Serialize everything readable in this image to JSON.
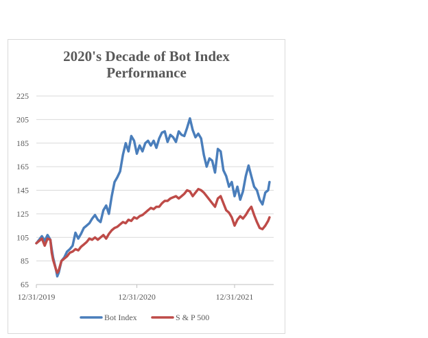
{
  "chart_data": {
    "type": "line",
    "title_lines": [
      "2020's Decade of Bot Index",
      "Performance"
    ],
    "xlabel": "",
    "ylabel": "",
    "ylim": [
      65,
      225
    ],
    "y_ticks": [
      "225",
      "205",
      "185",
      "165",
      "145",
      "125",
      "105",
      "85",
      "65"
    ],
    "x_ticks": [
      "12/31/2019",
      "12/31/2020",
      "12/31/2021"
    ],
    "grid": "horizontal",
    "legend_position": "bottom",
    "colors": {
      "bot_index": "#4a7ebb",
      "sp500": "#be4b48",
      "grid": "#d9d9d9",
      "axis": "#bfbfbf"
    },
    "series": [
      {
        "name": "Bot Index",
        "color": "#4a7ebb",
        "points": [
          [
            0,
            100
          ],
          [
            2,
            103
          ],
          [
            4,
            106
          ],
          [
            6,
            102
          ],
          [
            8,
            107
          ],
          [
            10,
            103
          ],
          [
            11,
            95
          ],
          [
            12,
            88
          ],
          [
            14,
            78
          ],
          [
            15,
            72
          ],
          [
            16,
            75
          ],
          [
            18,
            85
          ],
          [
            20,
            88
          ],
          [
            22,
            93
          ],
          [
            24,
            95
          ],
          [
            26,
            98
          ],
          [
            28,
            109
          ],
          [
            30,
            104
          ],
          [
            32,
            108
          ],
          [
            34,
            113
          ],
          [
            36,
            115
          ],
          [
            38,
            117
          ],
          [
            40,
            121
          ],
          [
            42,
            124
          ],
          [
            44,
            120
          ],
          [
            46,
            118
          ],
          [
            48,
            128
          ],
          [
            50,
            132
          ],
          [
            52,
            125
          ],
          [
            54,
            140
          ],
          [
            56,
            152
          ],
          [
            58,
            156
          ],
          [
            60,
            161
          ],
          [
            62,
            175
          ],
          [
            64,
            185
          ],
          [
            66,
            178
          ],
          [
            68,
            191
          ],
          [
            70,
            187
          ],
          [
            72,
            176
          ],
          [
            74,
            183
          ],
          [
            76,
            178
          ],
          [
            78,
            185
          ],
          [
            80,
            187
          ],
          [
            82,
            183
          ],
          [
            84,
            187
          ],
          [
            86,
            181
          ],
          [
            88,
            189
          ],
          [
            90,
            194
          ],
          [
            92,
            195
          ],
          [
            94,
            186
          ],
          [
            96,
            192
          ],
          [
            98,
            190
          ],
          [
            100,
            186
          ],
          [
            102,
            195
          ],
          [
            104,
            192
          ],
          [
            106,
            191
          ],
          [
            108,
            198
          ],
          [
            110,
            206
          ],
          [
            112,
            196
          ],
          [
            114,
            190
          ],
          [
            116,
            193
          ],
          [
            118,
            189
          ],
          [
            120,
            175
          ],
          [
            122,
            165
          ],
          [
            124,
            172
          ],
          [
            126,
            170
          ],
          [
            128,
            160
          ],
          [
            130,
            180
          ],
          [
            132,
            178
          ],
          [
            134,
            162
          ],
          [
            136,
            157
          ],
          [
            138,
            148
          ],
          [
            140,
            152
          ],
          [
            142,
            140
          ],
          [
            144,
            148
          ],
          [
            146,
            137
          ],
          [
            148,
            144
          ],
          [
            150,
            157
          ],
          [
            152,
            166
          ],
          [
            154,
            157
          ],
          [
            156,
            148
          ],
          [
            158,
            145
          ],
          [
            160,
            137
          ],
          [
            162,
            133
          ],
          [
            164,
            143
          ],
          [
            166,
            145
          ],
          [
            167,
            152
          ]
        ]
      },
      {
        "name": "S & P 500",
        "color": "#be4b48",
        "points": [
          [
            0,
            100
          ],
          [
            2,
            102
          ],
          [
            4,
            104
          ],
          [
            6,
            98
          ],
          [
            8,
            104
          ],
          [
            10,
            103
          ],
          [
            11,
            92
          ],
          [
            12,
            86
          ],
          [
            14,
            78
          ],
          [
            15,
            75
          ],
          [
            16,
            77
          ],
          [
            18,
            85
          ],
          [
            20,
            87
          ],
          [
            22,
            89
          ],
          [
            24,
            92
          ],
          [
            26,
            93
          ],
          [
            28,
            95
          ],
          [
            30,
            94
          ],
          [
            32,
            97
          ],
          [
            34,
            99
          ],
          [
            36,
            101
          ],
          [
            38,
            104
          ],
          [
            40,
            103
          ],
          [
            42,
            105
          ],
          [
            44,
            103
          ],
          [
            46,
            105
          ],
          [
            48,
            107
          ],
          [
            50,
            104
          ],
          [
            52,
            108
          ],
          [
            54,
            111
          ],
          [
            56,
            113
          ],
          [
            58,
            114
          ],
          [
            60,
            116
          ],
          [
            62,
            118
          ],
          [
            64,
            117
          ],
          [
            66,
            120
          ],
          [
            68,
            119
          ],
          [
            70,
            122
          ],
          [
            72,
            121
          ],
          [
            74,
            123
          ],
          [
            76,
            124
          ],
          [
            78,
            126
          ],
          [
            80,
            128
          ],
          [
            82,
            130
          ],
          [
            84,
            129
          ],
          [
            86,
            131
          ],
          [
            88,
            131
          ],
          [
            90,
            134
          ],
          [
            92,
            136
          ],
          [
            94,
            136
          ],
          [
            96,
            138
          ],
          [
            98,
            139
          ],
          [
            100,
            140
          ],
          [
            102,
            138
          ],
          [
            104,
            140
          ],
          [
            106,
            142
          ],
          [
            108,
            145
          ],
          [
            110,
            144
          ],
          [
            112,
            140
          ],
          [
            114,
            143
          ],
          [
            116,
            146
          ],
          [
            118,
            145
          ],
          [
            120,
            143
          ],
          [
            122,
            140
          ],
          [
            124,
            137
          ],
          [
            126,
            134
          ],
          [
            128,
            131
          ],
          [
            130,
            138
          ],
          [
            132,
            140
          ],
          [
            134,
            134
          ],
          [
            136,
            128
          ],
          [
            138,
            126
          ],
          [
            140,
            122
          ],
          [
            142,
            115
          ],
          [
            144,
            120
          ],
          [
            146,
            123
          ],
          [
            148,
            121
          ],
          [
            150,
            124
          ],
          [
            152,
            128
          ],
          [
            154,
            131
          ],
          [
            156,
            124
          ],
          [
            158,
            118
          ],
          [
            160,
            113
          ],
          [
            162,
            112
          ],
          [
            164,
            115
          ],
          [
            166,
            119
          ],
          [
            167,
            122
          ]
        ]
      }
    ]
  }
}
